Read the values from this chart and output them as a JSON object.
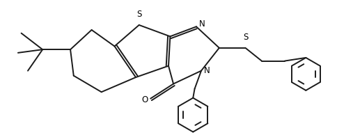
{
  "background_color": "#ffffff",
  "line_color": "#1a1a1a",
  "line_width": 1.4,
  "figsize": [
    4.84,
    1.94
  ],
  "dpi": 100,
  "xlim": [
    0,
    10
  ],
  "ylim": [
    0,
    4.1
  ]
}
